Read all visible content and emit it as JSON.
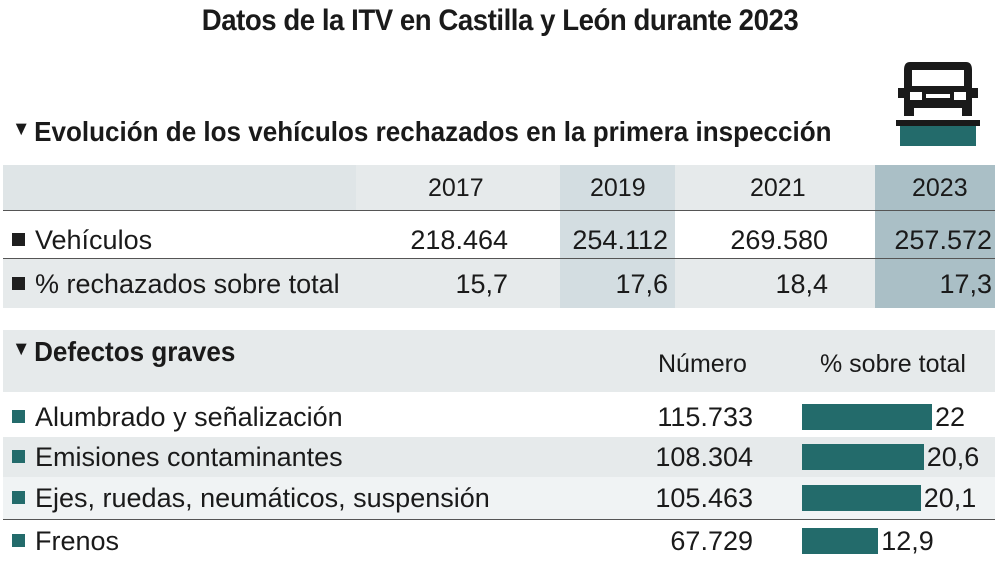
{
  "title": "Datos de la ITV en Castilla y León durante 2023",
  "colors": {
    "band": "#e6eaeb",
    "highlight_2019": "#d3dde1",
    "highlight_2023": "#aabfc6",
    "bar": "#236b6b",
    "icon": "#236b6b"
  },
  "icons": {
    "section_marker": "triangle-down-icon",
    "row_marker": "square-bullet-icon",
    "vehicle": "car-on-lift-icon"
  },
  "section1": {
    "heading": "Evolución de los vehículos rechazados en la primera inspección",
    "years": [
      "2017",
      "2019",
      "2021",
      "2023"
    ],
    "rows": [
      {
        "label": "Vehículos",
        "values": [
          "218.464",
          "254.112",
          "269.580",
          "257.572"
        ]
      },
      {
        "label": "% rechazados sobre total",
        "values": [
          "15,7",
          "17,6",
          "18,4",
          "17,3"
        ]
      }
    ]
  },
  "section2": {
    "heading": "Defectos graves",
    "col_numero": "Número",
    "col_pct": "% sobre total"
  },
  "chart_data": {
    "type": "bar",
    "title": "Defectos graves",
    "xlabel": "",
    "ylabel": "% sobre total",
    "categories": [
      "Alumbrado y señalización",
      "Emisiones contaminantes",
      "Ejes, ruedas, neumáticos, suspensión",
      "Frenos"
    ],
    "numero": [
      "115.733",
      "108.304",
      "105.463",
      "67.729"
    ],
    "values": [
      22,
      20.6,
      20.1,
      12.9
    ],
    "value_labels": [
      "22",
      "20,6",
      "20,1",
      "12,9"
    ],
    "xlim": [
      0,
      28
    ],
    "orientation": "horizontal"
  }
}
